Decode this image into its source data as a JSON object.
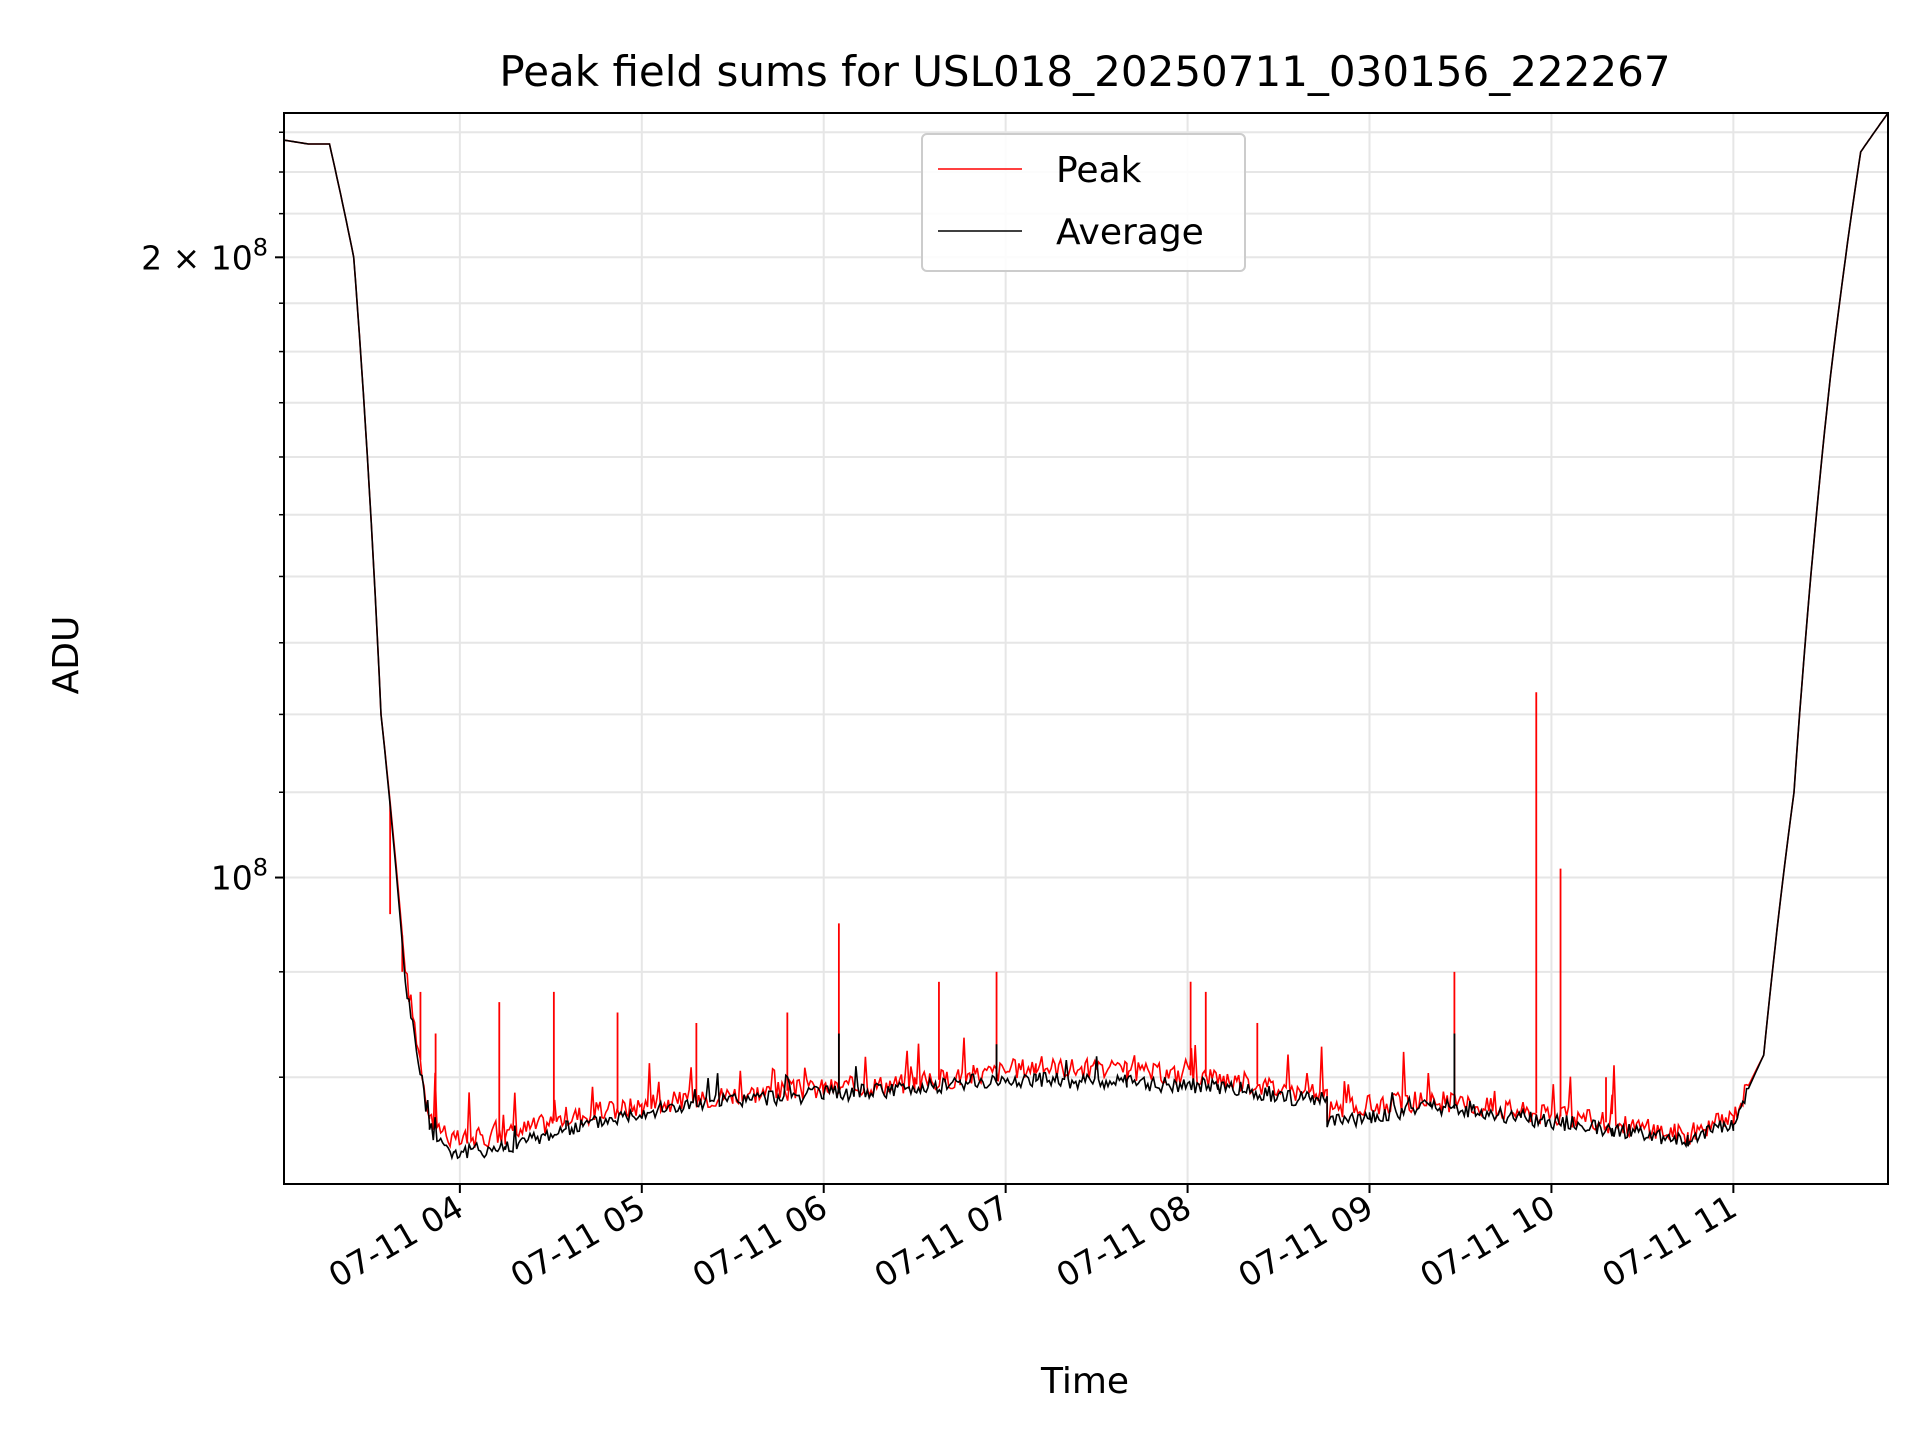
{
  "chart_data": {
    "type": "line",
    "title": "Peak field sums for USL018_20250711_030156_222267",
    "xlabel": "Time",
    "ylabel": "ADU",
    "yscale": "log",
    "xlim": [
      "2025-07-11 03:02",
      "2025-07-11 11:51"
    ],
    "ylim": [
      71000000,
      235000000
    ],
    "x_ticks": [
      "07-11 04",
      "07-11 05",
      "07-11 06",
      "07-11 07",
      "07-11 08",
      "07-11 09",
      "07-11 10",
      "07-11 11"
    ],
    "y_ticks": [
      {
        "value": 100000000,
        "mantissa": "",
        "exp": "8"
      },
      {
        "value": 200000000,
        "mantissa": "2",
        "exp": "8"
      }
    ],
    "grid": true,
    "legend_position": "upper center",
    "series": [
      {
        "name": "Peak",
        "color": "#ff0000",
        "baseline": [
          [
            "2025-07-11 03:02",
            228000000
          ],
          [
            "2025-07-11 03:10",
            227000000
          ],
          [
            "2025-07-11 03:17",
            227000000
          ],
          [
            "2025-07-11 03:25",
            200000000
          ],
          [
            "2025-07-11 03:34",
            120000000
          ],
          [
            "2025-07-11 03:42",
            90000000
          ],
          [
            "2025-07-11 03:50",
            76500000
          ],
          [
            "2025-07-11 03:58",
            74500000
          ],
          [
            "2025-07-11 04:15",
            75000000
          ],
          [
            "2025-07-11 04:35",
            76500000
          ],
          [
            "2025-07-11 05:00",
            77500000
          ],
          [
            "2025-07-11 05:30",
            78500000
          ],
          [
            "2025-07-11 06:00",
            79000000
          ],
          [
            "2025-07-11 06:30",
            79500000
          ],
          [
            "2025-07-11 06:45",
            80000000
          ],
          [
            "2025-07-11 07:10",
            81000000
          ],
          [
            "2025-07-11 07:40",
            80500000
          ],
          [
            "2025-07-11 08:10",
            80000000
          ],
          [
            "2025-07-11 08:40",
            78500000
          ],
          [
            "2025-07-11 08:46",
            78500000
          ],
          [
            "2025-07-11 08:46",
            77000000
          ],
          [
            "2025-07-11 09:00",
            77500000
          ],
          [
            "2025-07-11 09:20",
            78000000
          ],
          [
            "2025-07-11 09:50",
            77000000
          ],
          [
            "2025-07-11 10:20",
            76000000
          ],
          [
            "2025-07-11 10:45",
            75000000
          ],
          [
            "2025-07-11 11:00",
            76500000
          ],
          [
            "2025-07-11 11:10",
            82000000
          ],
          [
            "2025-07-11 11:20",
            110000000
          ],
          [
            "2025-07-11 11:32",
            175000000
          ],
          [
            "2025-07-11 11:42",
            225000000
          ],
          [
            "2025-07-11 11:51",
            235000000
          ]
        ],
        "spikes": [
          [
            "2025-07-11 03:37",
            96000000
          ],
          [
            "2025-07-11 03:41",
            90000000
          ],
          [
            "2025-07-11 03:47",
            88000000
          ],
          [
            "2025-07-11 03:52",
            84000000
          ],
          [
            "2025-07-11 04:13",
            87000000
          ],
          [
            "2025-07-11 04:31",
            88000000
          ],
          [
            "2025-07-11 04:52",
            86000000
          ],
          [
            "2025-07-11 05:18",
            85000000
          ],
          [
            "2025-07-11 05:48",
            86000000
          ],
          [
            "2025-07-11 06:05",
            95000000
          ],
          [
            "2025-07-11 06:38",
            89000000
          ],
          [
            "2025-07-11 06:57",
            90000000
          ],
          [
            "2025-07-11 08:01",
            89000000
          ],
          [
            "2025-07-11 08:06",
            88000000
          ],
          [
            "2025-07-11 08:23",
            85000000
          ],
          [
            "2025-07-11 09:28",
            90000000
          ],
          [
            "2025-07-11 09:55",
            123000000
          ],
          [
            "2025-07-11 10:03",
            101000000
          ],
          [
            "2025-07-11 10:18",
            80000000
          ]
        ]
      },
      {
        "name": "Average",
        "color": "#000000",
        "baseline": [
          [
            "2025-07-11 03:02",
            228000000
          ],
          [
            "2025-07-11 03:10",
            227000000
          ],
          [
            "2025-07-11 03:17",
            227000000
          ],
          [
            "2025-07-11 03:25",
            200000000
          ],
          [
            "2025-07-11 03:34",
            120000000
          ],
          [
            "2025-07-11 03:42",
            89000000
          ],
          [
            "2025-07-11 03:50",
            75500000
          ],
          [
            "2025-07-11 03:58",
            73500000
          ],
          [
            "2025-07-11 04:15",
            74000000
          ],
          [
            "2025-07-11 04:35",
            75500000
          ],
          [
            "2025-07-11 05:00",
            77000000
          ],
          [
            "2025-07-11 05:30",
            78000000
          ],
          [
            "2025-07-11 06:00",
            78500000
          ],
          [
            "2025-07-11 06:30",
            79000000
          ],
          [
            "2025-07-11 06:45",
            79500000
          ],
          [
            "2025-07-11 07:10",
            79800000
          ],
          [
            "2025-07-11 07:40",
            79500000
          ],
          [
            "2025-07-11 08:10",
            79200000
          ],
          [
            "2025-07-11 08:40",
            78000000
          ],
          [
            "2025-07-11 08:46",
            78000000
          ],
          [
            "2025-07-11 08:46",
            76000000
          ],
          [
            "2025-07-11 09:00",
            76500000
          ],
          [
            "2025-07-11 09:20",
            77500000
          ],
          [
            "2025-07-11 09:50",
            76500000
          ],
          [
            "2025-07-11 10:20",
            75500000
          ],
          [
            "2025-07-11 10:45",
            74500000
          ],
          [
            "2025-07-11 11:00",
            76000000
          ],
          [
            "2025-07-11 11:10",
            82000000
          ],
          [
            "2025-07-11 11:20",
            110000000
          ],
          [
            "2025-07-11 11:32",
            175000000
          ],
          [
            "2025-07-11 11:42",
            225000000
          ],
          [
            "2025-07-11 11:51",
            235000000
          ]
        ],
        "spikes": [
          [
            "2025-07-11 06:05",
            84000000
          ],
          [
            "2025-07-11 06:57",
            83000000
          ],
          [
            "2025-07-11 09:28",
            84000000
          ]
        ]
      }
    ]
  }
}
